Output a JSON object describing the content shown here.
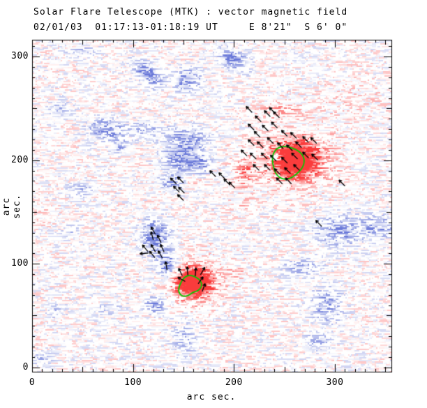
{
  "chart_data": {
    "type": "heatmap",
    "title": "Solar Flare Telescope (MTK) : vector magnetic field",
    "subtitle": "02/01/03  01:17:13-01:18:19 UT     E 8'21\"  S 6' 0\"",
    "xlabel": "arc sec.",
    "ylabel": "arc sec.",
    "xlim": [
      0,
      356
    ],
    "ylim": [
      -4.3,
      316.3
    ],
    "xticks": [
      0,
      100,
      200,
      300
    ],
    "yticks": [
      0,
      100,
      200,
      300
    ],
    "minor_tick_step": 10,
    "mid_tick_step": 50,
    "grid": false,
    "legend": "none",
    "colors": {
      "positive_polarity": "#fa3232",
      "negative_polarity": "#6070d6",
      "contour": "#00cc00",
      "vector": "#000000",
      "axis": "#000000",
      "background": "#ffffff"
    },
    "noise": {
      "seed": 3,
      "amplitude": 0.5,
      "streak": 0.58,
      "cell": 2,
      "threshold": 0.15
    },
    "vector_length_arcsec": 8.5,
    "blobs": [
      [
        115,
        283,
        11,
        6,
        -40,
        -0.85
      ],
      [
        154,
        278,
        9,
        7,
        0,
        -0.8
      ],
      [
        200,
        297,
        12,
        5.5,
        -25,
        -0.8
      ],
      [
        51,
        305,
        10,
        4,
        0,
        -0.35
      ],
      [
        28,
        250,
        8,
        5.5,
        0,
        -0.4
      ],
      [
        75,
        229,
        12.5,
        7.5,
        -10,
        -0.75
      ],
      [
        87,
        214,
        5.5,
        4,
        0,
        -0.5
      ],
      [
        113,
        229,
        10,
        5.5,
        0,
        -0.45
      ],
      [
        152,
        222,
        15,
        8,
        0,
        -0.55
      ],
      [
        149,
        203,
        12.5,
        9.5,
        10,
        -0.8
      ],
      [
        166,
        195,
        8,
        7,
        0,
        -0.6
      ],
      [
        50,
        172,
        8,
        5,
        0,
        -0.55
      ],
      [
        139,
        179,
        8,
        5.5,
        0,
        -0.6
      ],
      [
        122,
        126,
        10,
        11,
        20,
        -0.85
      ],
      [
        134,
        98,
        8,
        9.5,
        0,
        -0.8
      ],
      [
        122,
        60,
        9,
        6,
        0,
        -0.6
      ],
      [
        305,
        132,
        18,
        11,
        0,
        -0.6
      ],
      [
        345,
        135,
        12.5,
        8,
        0,
        -0.5
      ],
      [
        267,
        96,
        14,
        6,
        0,
        -0.45
      ],
      [
        292,
        59,
        11,
        13.5,
        0,
        -0.55
      ],
      [
        282,
        25,
        10,
        6,
        0,
        -0.45
      ],
      [
        24,
        54,
        7,
        5,
        0,
        -0.3
      ],
      [
        10,
        8,
        8,
        5.5,
        0,
        -0.35
      ],
      [
        37,
        132,
        5.5,
        4,
        0,
        -0.35
      ],
      [
        243,
        202,
        4,
        3.5,
        0,
        -0.5
      ],
      [
        74,
        57,
        10,
        4,
        0,
        -0.3
      ],
      [
        151,
        28,
        8,
        12,
        0,
        -0.4
      ],
      [
        261,
        200,
        14,
        11.5,
        0,
        1.5
      ],
      [
        262,
        202,
        29,
        20,
        0,
        0.45
      ],
      [
        219,
        191,
        12.5,
        8,
        0,
        0.3
      ],
      [
        210,
        185,
        5.5,
        9.5,
        0,
        0.35
      ],
      [
        160,
        82,
        12,
        10,
        0,
        1.4
      ],
      [
        160,
        83,
        21,
        16,
        0,
        0.4
      ],
      [
        159,
        181,
        8,
        5.5,
        0,
        0.3
      ],
      [
        245,
        248,
        15,
        5.5,
        0,
        0.35
      ],
      [
        203,
        91,
        7,
        4,
        0,
        0.25
      ],
      [
        207,
        158,
        8,
        3.5,
        0,
        0.25
      ],
      [
        314,
        263,
        28,
        17,
        0,
        0.12
      ],
      [
        10,
        147,
        10,
        6,
        0,
        0.15
      ]
    ],
    "contours": [
      {
        "x": 253,
        "y": 198,
        "r": 15.5,
        "wobble": [
          [
            0.07,
            3,
            1.0
          ]
        ]
      },
      {
        "x": 156,
        "y": 79,
        "r": 10,
        "wobble": [
          [
            0.16,
            2,
            0.5
          ],
          [
            0.1,
            3,
            2.0
          ]
        ]
      }
    ],
    "vectors": [
      [
        215,
        249
      ],
      [
        224,
        240
      ],
      [
        233,
        245
      ],
      [
        242,
        244
      ],
      [
        238,
        248
      ],
      [
        217,
        232
      ],
      [
        223,
        225
      ],
      [
        231,
        231
      ],
      [
        240,
        234
      ],
      [
        250,
        226
      ],
      [
        259,
        224
      ],
      [
        217,
        217
      ],
      [
        226,
        215
      ],
      [
        236,
        219
      ],
      [
        246,
        214
      ],
      [
        255,
        212
      ],
      [
        264,
        215
      ],
      [
        210,
        207
      ],
      [
        219,
        204
      ],
      [
        230,
        204
      ],
      [
        239,
        202
      ],
      [
        250,
        200
      ],
      [
        260,
        204
      ],
      [
        222,
        193
      ],
      [
        233,
        193
      ],
      [
        243,
        189
      ],
      [
        253,
        190
      ],
      [
        262,
        193
      ],
      [
        245,
        180
      ],
      [
        254,
        180
      ],
      [
        271,
        220
      ],
      [
        279,
        219
      ],
      [
        271,
        205
      ],
      [
        280,
        203
      ],
      [
        140,
        180
      ],
      [
        147,
        181
      ],
      [
        143,
        172
      ],
      [
        148,
        171
      ],
      [
        147,
        164
      ],
      [
        179,
        187
      ],
      [
        188,
        185
      ],
      [
        193,
        179
      ],
      [
        198,
        176
      ],
      [
        120,
        132,
        120
      ],
      [
        119,
        127,
        105
      ],
      [
        126,
        124,
        115
      ],
      [
        112,
        115,
        130
      ],
      [
        120,
        115,
        120
      ],
      [
        129,
        115,
        115
      ],
      [
        111,
        110,
        185
      ],
      [
        119,
        109,
        130
      ],
      [
        127,
        109,
        120
      ],
      [
        133,
        98,
        100
      ],
      [
        147,
        92,
        115
      ],
      [
        154,
        93,
        95
      ],
      [
        162,
        92,
        85
      ],
      [
        169,
        93,
        60
      ],
      [
        148,
        85,
        150
      ],
      [
        167,
        84,
        55
      ],
      [
        170,
        77,
        70
      ],
      [
        307,
        178
      ],
      [
        284,
        139
      ]
    ]
  }
}
